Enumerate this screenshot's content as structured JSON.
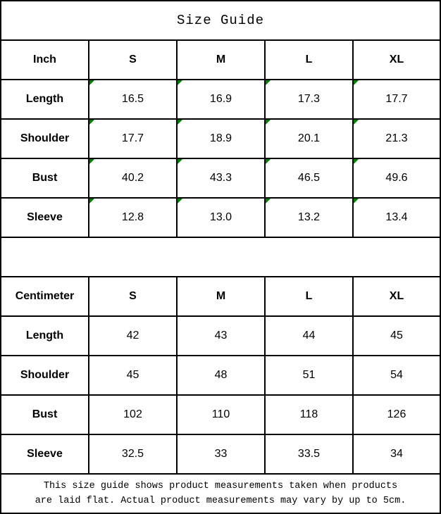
{
  "title": "Size Guide",
  "colors": {
    "border": "#000000",
    "background": "#ffffff",
    "flag_indicator_green": "#008000"
  },
  "tables": [
    {
      "unit": "Inch",
      "sizes": [
        "S",
        "M",
        "L",
        "XL"
      ],
      "rows": [
        {
          "label": "Length",
          "values": [
            "16.5",
            "16.9",
            "17.3",
            "17.7"
          ]
        },
        {
          "label": "Shoulder",
          "values": [
            "17.7",
            "18.9",
            "20.1",
            "21.3"
          ]
        },
        {
          "label": "Bust",
          "values": [
            "40.2",
            "43.3",
            "46.5",
            "49.6"
          ]
        },
        {
          "label": "Sleeve",
          "values": [
            "12.8",
            "13.0",
            "13.2",
            "13.4"
          ]
        }
      ]
    },
    {
      "unit": "Centimeter",
      "sizes": [
        "S",
        "M",
        "L",
        "XL"
      ],
      "rows": [
        {
          "label": "Length",
          "values": [
            "42",
            "43",
            "44",
            "45"
          ]
        },
        {
          "label": "Shoulder",
          "values": [
            "45",
            "48",
            "51",
            "54"
          ]
        },
        {
          "label": "Bust",
          "values": [
            "102",
            "110",
            "118",
            "126"
          ]
        },
        {
          "label": "Sleeve",
          "values": [
            "32.5",
            "33",
            "33.5",
            "34"
          ]
        }
      ]
    }
  ],
  "footer": {
    "text": "This size guide shows product measurements taken when products\nare laid flat. Actual product measurements may vary by up to 5cm."
  }
}
